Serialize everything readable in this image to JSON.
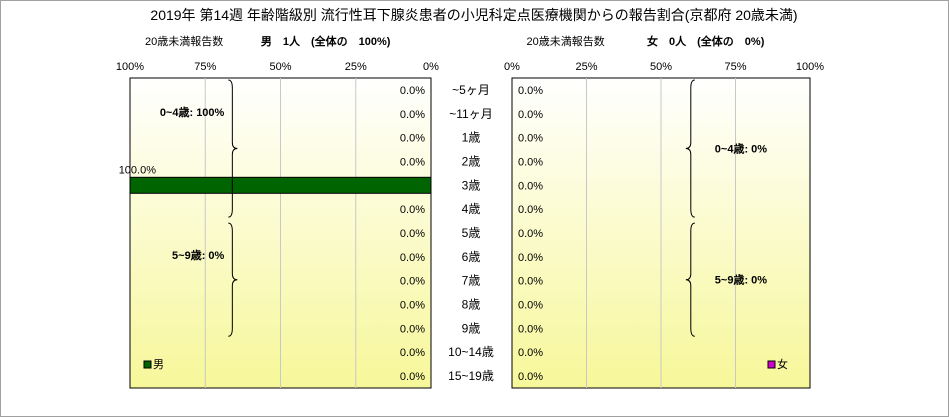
{
  "chart_data": {
    "type": "bar",
    "title": "2019年 第14週 年齢階級別 流行性耳下腺炎患者の小児科定点医療機関からの報告割合(京都府 20歳未満)",
    "categories": [
      "~5ヶ月",
      "~11ヶ月",
      "1歳",
      "2歳",
      "3歳",
      "4歳",
      "5歳",
      "6歳",
      "7歳",
      "8歳",
      "9歳",
      "10~14歳",
      "15~19歳"
    ],
    "left_panel": {
      "axis_caption": "20歳未満報告数",
      "header": "男　1人　(全体の　100%)",
      "ticks": [
        "100%",
        "75%",
        "50%",
        "25%",
        "0%"
      ],
      "xlim": [
        100,
        0
      ],
      "series": [
        {
          "name": "男",
          "values": [
            0,
            0,
            0,
            0,
            100,
            0,
            0,
            0,
            0,
            0,
            0,
            0,
            0
          ]
        }
      ],
      "value_labels": [
        "0.0%",
        "0.0%",
        "0.0%",
        "0.0%",
        "100.0%",
        "0.0%",
        "0.0%",
        "0.0%",
        "0.0%",
        "0.0%",
        "0.0%",
        "0.0%",
        "0.0%"
      ],
      "group_labels": [
        "0~4歳: 100%",
        "5~9歳: 0%"
      ],
      "bar_color": "#006400",
      "legend": "男"
    },
    "right_panel": {
      "axis_caption": "20歳未満報告数",
      "header": "女　0人　(全体の　0%)",
      "ticks": [
        "0%",
        "25%",
        "50%",
        "75%",
        "100%"
      ],
      "xlim": [
        0,
        100
      ],
      "series": [
        {
          "name": "女",
          "values": [
            0,
            0,
            0,
            0,
            0,
            0,
            0,
            0,
            0,
            0,
            0,
            0,
            0
          ]
        }
      ],
      "value_labels": [
        "0.0%",
        "0.0%",
        "0.0%",
        "0.0%",
        "0.0%",
        "0.0%",
        "0.0%",
        "0.0%",
        "0.0%",
        "0.0%",
        "0.0%",
        "0.0%",
        "0.0%"
      ],
      "group_labels": [
        "0~4歳: 0%",
        "5~9歳: 0%"
      ],
      "bar_color": "#cc00cc",
      "legend": "女"
    },
    "colors": {
      "panel_gradient_top": "#ffffff",
      "panel_gradient_bottom": "#f7f79a",
      "grid": "#c8c8c8"
    }
  }
}
